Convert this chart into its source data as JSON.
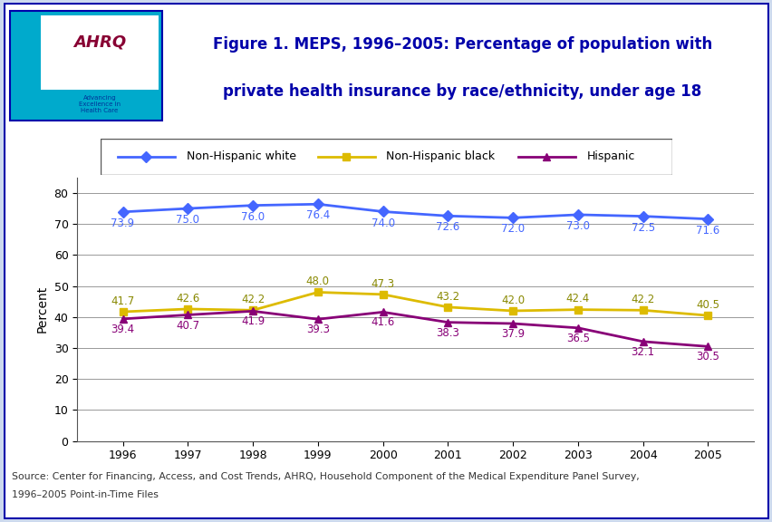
{
  "years": [
    1996,
    1997,
    1998,
    1999,
    2000,
    2001,
    2002,
    2003,
    2004,
    2005
  ],
  "non_hispanic_white": [
    73.9,
    75.0,
    76.0,
    76.4,
    74.0,
    72.6,
    72.0,
    73.0,
    72.5,
    71.6
  ],
  "non_hispanic_black": [
    41.7,
    42.6,
    42.2,
    48.0,
    47.3,
    43.2,
    42.0,
    42.4,
    42.2,
    40.5
  ],
  "hispanic": [
    39.4,
    40.7,
    41.9,
    39.3,
    41.6,
    38.3,
    37.9,
    36.5,
    32.1,
    30.5
  ],
  "color_white": "#4466ff",
  "color_black": "#ddbb00",
  "color_hispanic": "#880077",
  "title_line1": "Figure 1. MEPS, 1996–2005: Percentage of population with",
  "title_line2": "private health insurance by race/ethnicity, under age 18",
  "ylabel": "Percent",
  "ylim": [
    0,
    85
  ],
  "yticks": [
    0,
    10,
    20,
    30,
    40,
    50,
    60,
    70,
    80
  ],
  "legend_labels": [
    "Non-Hispanic white",
    "Non-Hispanic black",
    "Hispanic"
  ],
  "source_line1": "Source: Center for Financing, Access, and Cost Trends, AHRQ, Household Component of the Medical Expenditure Panel Survey,",
  "source_line2": "1996–2005 Point-in-Time Files",
  "header_bg": "white",
  "body_bg": "white",
  "outer_border": "#0000aa",
  "blue_bar_color": "#0000aa",
  "logo_teal": "#00aacc",
  "logo_text_color": "#330099",
  "title_color": "#0000aa"
}
